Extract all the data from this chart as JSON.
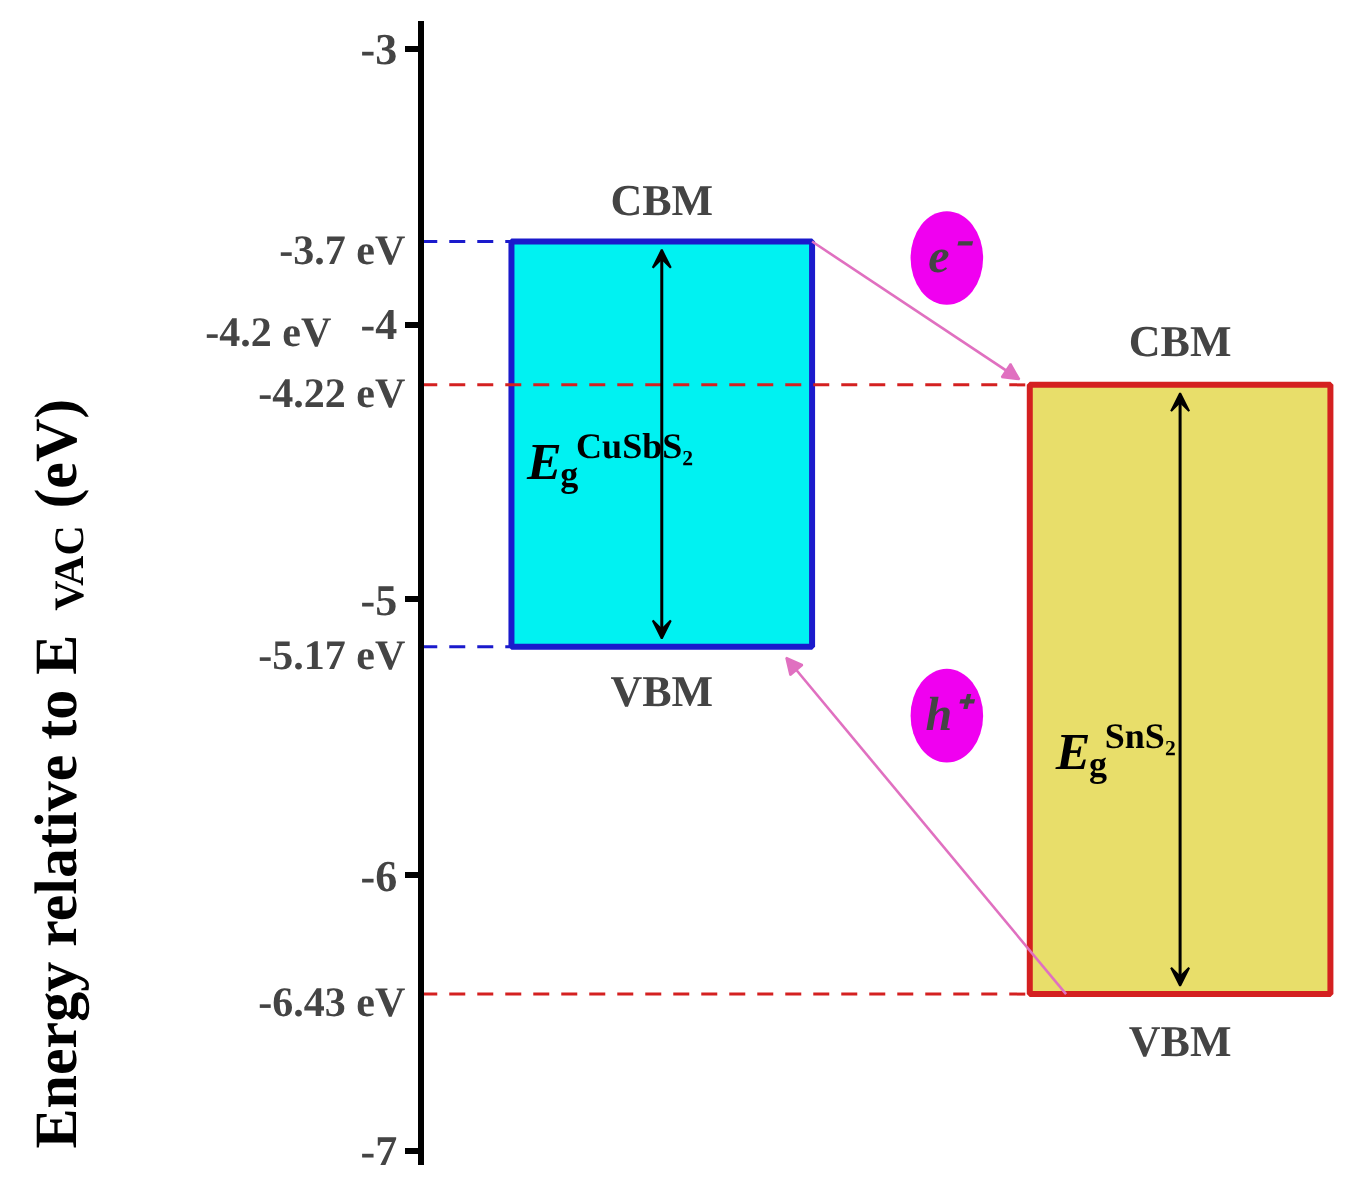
{
  "chart_data": {
    "type": "bar",
    "ylabel": "Energy relative to E$_{VAC}$ (eV)",
    "categories": [
      null,
      null
    ],
    "base": [
      -5.17,
      -6.43
    ],
    "values": [
      1.47,
      2.21
    ],
    "colors": [
      "#00f2f2",
      "#e8de6a"
    ],
    "ylim": [
      -7.05,
      -2.9
    ],
    "yticks": [
      -3,
      -4,
      -5,
      -6,
      -7
    ],
    "tick_labels": "y",
    "grid": false,
    "ref_lines": [
      {
        "axis": "y",
        "value": -3.7,
        "label": "-3.7 eV",
        "color": "#1a1acc",
        "line_style": "dashed"
      },
      {
        "axis": "y",
        "value": -4.22,
        "label": "-4.22 eV",
        "color": "#d42020",
        "line_style": "dashed"
      },
      {
        "axis": "y",
        "value": -5.17,
        "label": "-5.17 eV",
        "color": "#1a1acc",
        "line_style": "dashed"
      },
      {
        "axis": "y",
        "value": -6.43,
        "label": "-6.43 eV",
        "color": "#d42020",
        "line_style": "dashed"
      }
    ],
    "annotations": [
      "-4.2 eV",
      "CBM",
      "VBM",
      "E$_{g}$$^{CuSbS₂}$",
      "CBM",
      "VBM",
      "E$_{g}$$^{SnS₂}$",
      "e⁻",
      "h⁺"
    ]
  }
}
